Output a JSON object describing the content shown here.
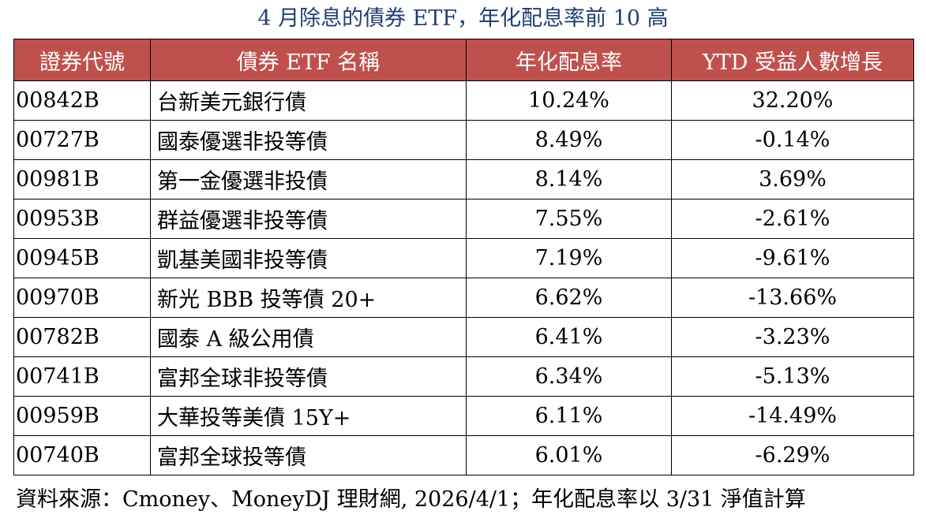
{
  "title": "4 月除息的債券 ETF，年化配息率前 10 高",
  "colors": {
    "title": "#1f3f73",
    "header_bg": "#c0504d",
    "header_text": "#ffffff"
  },
  "table": {
    "headers": [
      "證券代號",
      "債券 ETF 名稱",
      "年化配息率",
      "YTD 受益人數增長"
    ],
    "rows": [
      [
        "00842B",
        "台新美元銀行債",
        "10.24%",
        "32.20%"
      ],
      [
        "00727B",
        "國泰優選非投等債",
        "8.49%",
        "-0.14%"
      ],
      [
        "00981B",
        "第一金優選非投債",
        "8.14%",
        "3.69%"
      ],
      [
        "00953B",
        "群益優選非投等債",
        "7.55%",
        "-2.61%"
      ],
      [
        "00945B",
        "凱基美國非投等債",
        "7.19%",
        "-9.61%"
      ],
      [
        "00970B",
        "新光 BBB 投等債 20+",
        "6.62%",
        "-13.66%"
      ],
      [
        "00782B",
        "國泰 A 級公用債",
        "6.41%",
        "-3.23%"
      ],
      [
        "00741B",
        "富邦全球非投等債",
        "6.34%",
        "-5.13%"
      ],
      [
        "00959B",
        "大華投等美債 15Y+",
        "6.11%",
        "-14.49%"
      ],
      [
        "00740B",
        "富邦全球投等債",
        "6.01%",
        "-6.29%"
      ]
    ]
  },
  "footer": "資料來源：Cmoney、MoneyDJ 理財網, 2026/4/1；年化配息率以 3/31 淨值計算"
}
